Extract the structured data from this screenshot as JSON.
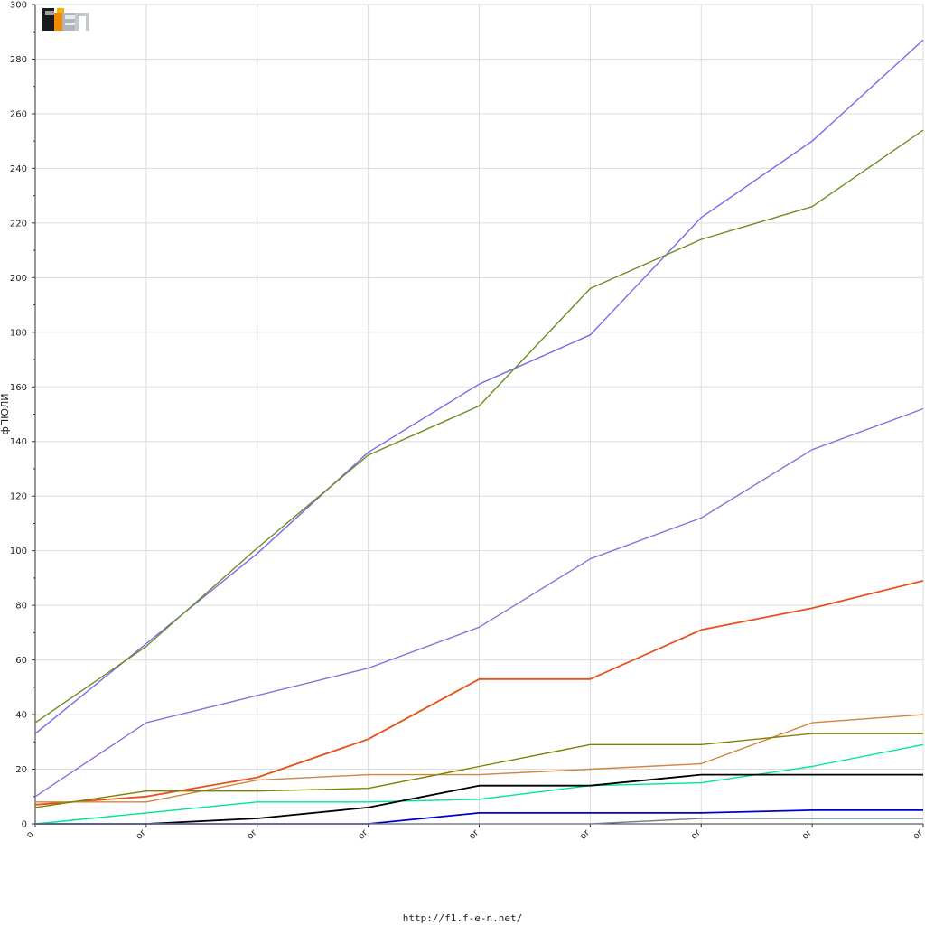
{
  "chart_data": {
    "type": "line",
    "ylabel": "фПЮЛИ",
    "ylim": [
      0,
      300
    ],
    "yticks": [
      0,
      20,
      40,
      60,
      80,
      100,
      120,
      140,
      160,
      180,
      200,
      220,
      240,
      260,
      280,
      300
    ],
    "x_tick_labels": [
      "o",
      "or",
      "or",
      "or",
      "or",
      "or",
      "or",
      "or",
      "or"
    ],
    "grid": true,
    "legend": "none",
    "series": [
      {
        "color": "#7b68ee",
        "values": [
          33,
          66,
          99,
          136,
          161,
          179,
          222,
          250,
          287
        ]
      },
      {
        "color": "#6b8e23",
        "values": [
          37,
          65,
          101,
          135,
          153,
          196,
          214,
          226,
          254
        ]
      },
      {
        "color": "#9370db",
        "values": [
          10,
          37,
          47,
          57,
          72,
          97,
          112,
          137,
          152
        ]
      },
      {
        "color": "#e8501a",
        "values": [
          7,
          10,
          17,
          31,
          53,
          53,
          71,
          79,
          89
        ]
      },
      {
        "color": "#cd853f",
        "values": [
          8,
          8,
          16,
          18,
          18,
          20,
          22,
          37,
          40
        ]
      },
      {
        "color": "#808000",
        "values": [
          6,
          12,
          12,
          13,
          21,
          29,
          29,
          33,
          33
        ]
      },
      {
        "color": "#00e68a",
        "values": [
          0,
          4,
          8,
          8,
          9,
          14,
          15,
          21,
          29
        ]
      },
      {
        "color": "#000000",
        "values": [
          0,
          0,
          2,
          6,
          14,
          14,
          18,
          18,
          18
        ]
      },
      {
        "color": "#0000cd",
        "values": [
          0,
          0,
          0,
          0,
          4,
          4,
          4,
          5,
          5
        ]
      },
      {
        "color": "#708090",
        "values": [
          0,
          0,
          0,
          0,
          0,
          0,
          2,
          2,
          2
        ]
      }
    ]
  },
  "footer": {
    "url": "http://f1.f-e-n.net/"
  },
  "logo": {
    "text": "F1EN",
    "name": "fen-logo"
  }
}
